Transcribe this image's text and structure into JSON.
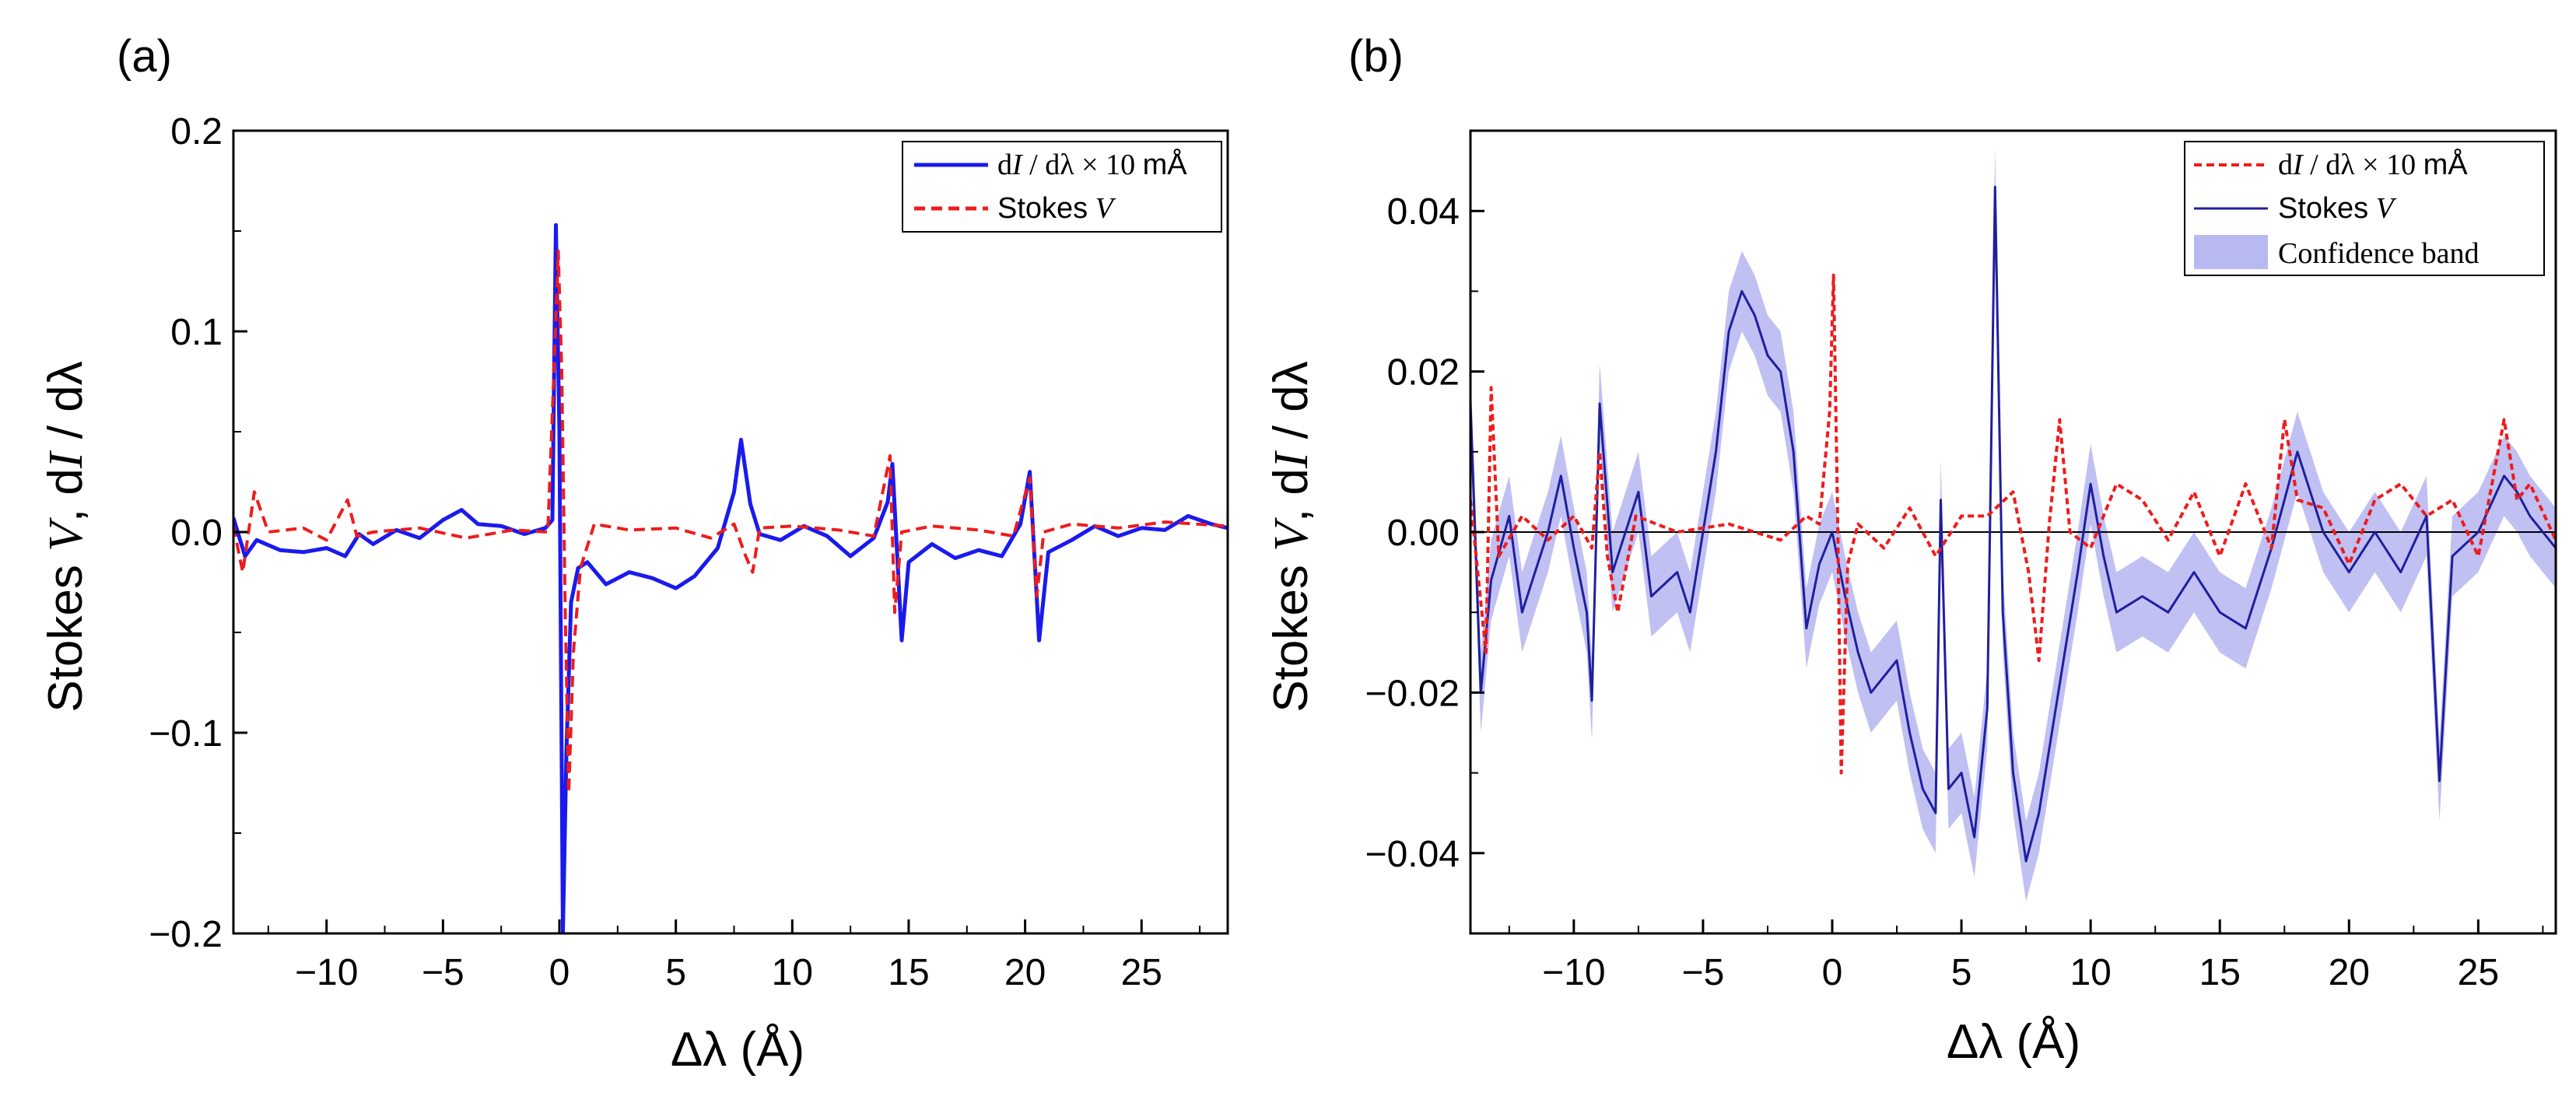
{
  "colors": {
    "blue": "#1a1aee",
    "navy": "#1f1f9e",
    "red": "#ee1c1c",
    "band": "#b9b9f2"
  },
  "chart_data": [
    {
      "panel_label": "(a)",
      "type": "line",
      "xlabel": "Δλ (Å)",
      "ylabel": "Stokes V, dI / dλ",
      "xlim": [
        -14,
        28.7
      ],
      "ylim": [
        -0.2,
        0.2
      ],
      "xticks": [
        -10,
        -5,
        0,
        5,
        10,
        15,
        20,
        25
      ],
      "xtick_labels": [
        "−10",
        "−5",
        "0",
        "5",
        "10",
        "15",
        "20",
        "25"
      ],
      "yticks": [
        -0.2,
        -0.1,
        0.0,
        0.1,
        0.2
      ],
      "ytick_labels": [
        "−0.2",
        "−0.1",
        "0.0",
        "0.1",
        "0.2"
      ],
      "legend": {
        "position": "top-right",
        "entries": [
          "dI / dλ × 10 mÅ",
          "Stokes V"
        ]
      },
      "series": [
        {
          "name": "dI / dλ × 10 mÅ",
          "style": "solid",
          "color": "#1a1aee",
          "points": [
            [
              -14,
              0.007
            ],
            [
              -13.5,
              -0.012
            ],
            [
              -13,
              -0.004
            ],
            [
              -12,
              -0.009
            ],
            [
              -11,
              -0.01
            ],
            [
              -10,
              -0.008
            ],
            [
              -9.2,
              -0.012
            ],
            [
              -8.6,
              -0.001
            ],
            [
              -8,
              -0.006
            ],
            [
              -7,
              0.001
            ],
            [
              -6,
              -0.003
            ],
            [
              -5,
              0.006
            ],
            [
              -4.2,
              0.011
            ],
            [
              -3.5,
              0.004
            ],
            [
              -2.5,
              0.003
            ],
            [
              -1.5,
              -0.001
            ],
            [
              -0.6,
              0.002
            ],
            [
              -0.3,
              0.006
            ],
            [
              -0.15,
              0.153
            ],
            [
              0,
              0.05
            ],
            [
              0.15,
              -0.2
            ],
            [
              0.3,
              -0.11
            ],
            [
              0.5,
              -0.035
            ],
            [
              0.8,
              -0.018
            ],
            [
              1.2,
              -0.015
            ],
            [
              2,
              -0.026
            ],
            [
              3,
              -0.02
            ],
            [
              4,
              -0.023
            ],
            [
              5,
              -0.028
            ],
            [
              5.8,
              -0.022
            ],
            [
              6.8,
              -0.008
            ],
            [
              7.5,
              0.02
            ],
            [
              7.8,
              0.046
            ],
            [
              8.2,
              0.014
            ],
            [
              8.6,
              -0.001
            ],
            [
              9.5,
              -0.004
            ],
            [
              10.5,
              0.003
            ],
            [
              11.5,
              -0.002
            ],
            [
              12.5,
              -0.012
            ],
            [
              13.5,
              -0.003
            ],
            [
              14.1,
              0.015
            ],
            [
              14.3,
              0.034
            ],
            [
              14.5,
              -0.01
            ],
            [
              14.7,
              -0.054
            ],
            [
              15,
              -0.015
            ],
            [
              16,
              -0.006
            ],
            [
              17,
              -0.013
            ],
            [
              18,
              -0.009
            ],
            [
              19,
              -0.012
            ],
            [
              19.8,
              0.004
            ],
            [
              20.2,
              0.03
            ],
            [
              20.4,
              -0.012
            ],
            [
              20.6,
              -0.054
            ],
            [
              21,
              -0.01
            ],
            [
              22,
              -0.004
            ],
            [
              23,
              0.003
            ],
            [
              24,
              -0.002
            ],
            [
              25,
              0.002
            ],
            [
              26,
              0.001
            ],
            [
              27,
              0.008
            ],
            [
              28,
              0.004
            ],
            [
              28.7,
              0.002
            ]
          ]
        },
        {
          "name": "Stokes V",
          "style": "dashed",
          "color": "#ee1c1c",
          "points": [
            [
              -14,
              0.003
            ],
            [
              -13.6,
              -0.02
            ],
            [
              -13.1,
              0.02
            ],
            [
              -12.5,
              0.0
            ],
            [
              -11,
              0.002
            ],
            [
              -10,
              -0.004
            ],
            [
              -9.1,
              0.016
            ],
            [
              -8.7,
              -0.002
            ],
            [
              -8,
              0.0
            ],
            [
              -6,
              0.002
            ],
            [
              -4,
              -0.003
            ],
            [
              -2,
              0.001
            ],
            [
              -0.5,
              0.0
            ],
            [
              -0.2,
              0.09
            ],
            [
              -0.05,
              0.14
            ],
            [
              0.1,
              0.08
            ],
            [
              0.25,
              -0.04
            ],
            [
              0.4,
              -0.13
            ],
            [
              0.6,
              -0.06
            ],
            [
              0.9,
              -0.018
            ],
            [
              1.5,
              0.004
            ],
            [
              3,
              0.001
            ],
            [
              5,
              0.002
            ],
            [
              6.5,
              -0.003
            ],
            [
              7.5,
              0.004
            ],
            [
              8,
              -0.012
            ],
            [
              8.3,
              -0.02
            ],
            [
              8.6,
              0.002
            ],
            [
              10,
              0.003
            ],
            [
              12,
              0.001
            ],
            [
              13.5,
              -0.002
            ],
            [
              14.2,
              0.038
            ],
            [
              14.4,
              -0.04
            ],
            [
              14.7,
              0.0
            ],
            [
              16,
              0.003
            ],
            [
              18,
              0.001
            ],
            [
              19.5,
              -0.002
            ],
            [
              20.2,
              0.027
            ],
            [
              20.5,
              -0.032
            ],
            [
              20.8,
              0.0
            ],
            [
              22,
              0.004
            ],
            [
              24,
              0.002
            ],
            [
              26,
              0.005
            ],
            [
              28.7,
              0.003
            ]
          ]
        }
      ]
    },
    {
      "panel_label": "(b)",
      "type": "line",
      "xlabel": "Δλ (Å)",
      "ylabel": "Stokes V, dI / dλ",
      "xlim": [
        -14,
        28
      ],
      "ylim": [
        -0.05,
        0.05
      ],
      "xticks": [
        -10,
        -5,
        0,
        5,
        10,
        15,
        20,
        25
      ],
      "xtick_labels": [
        "−10",
        "−5",
        "0",
        "5",
        "10",
        "15",
        "20",
        "25"
      ],
      "yticks": [
        -0.04,
        -0.02,
        0.0,
        0.02,
        0.04
      ],
      "ytick_labels": [
        "−0.04",
        "−0.02",
        "0.00",
        "0.02",
        "0.04"
      ],
      "zero_line": true,
      "legend": {
        "position": "top-right",
        "entries": [
          "dI / dλ × 10 mÅ",
          "Stokes V",
          "Confidence band"
        ]
      },
      "series": [
        {
          "name": "dI / dλ × 10 mÅ",
          "style": "dashed",
          "color": "#ee1c1c",
          "points": [
            [
              -14,
              0.004
            ],
            [
              -13.4,
              -0.015
            ],
            [
              -13.2,
              0.018
            ],
            [
              -12.9,
              -0.003
            ],
            [
              -12,
              0.002
            ],
            [
              -11,
              -0.001
            ],
            [
              -10,
              0.002
            ],
            [
              -9.3,
              -0.002
            ],
            [
              -9,
              0.01
            ],
            [
              -8.7,
              -0.003
            ],
            [
              -8.3,
              -0.01
            ],
            [
              -7.6,
              0.002
            ],
            [
              -6,
              0.0
            ],
            [
              -4,
              0.001
            ],
            [
              -2,
              -0.001
            ],
            [
              -1,
              0.002
            ],
            [
              -0.5,
              0.001
            ],
            [
              -0.1,
              0.015
            ],
            [
              0.05,
              0.032
            ],
            [
              0.2,
              0.004
            ],
            [
              0.35,
              -0.03
            ],
            [
              0.6,
              -0.004
            ],
            [
              1,
              0.001
            ],
            [
              2,
              -0.002
            ],
            [
              3,
              0.003
            ],
            [
              4,
              -0.003
            ],
            [
              5,
              0.002
            ],
            [
              6,
              0.002
            ],
            [
              7,
              0.005
            ],
            [
              7.6,
              -0.005
            ],
            [
              8,
              -0.016
            ],
            [
              8.4,
              0.001
            ],
            [
              8.8,
              0.014
            ],
            [
              9.2,
              0.0
            ],
            [
              10,
              -0.002
            ],
            [
              11,
              0.006
            ],
            [
              12,
              0.004
            ],
            [
              13,
              -0.001
            ],
            [
              14,
              0.005
            ],
            [
              15,
              -0.003
            ],
            [
              16,
              0.006
            ],
            [
              17,
              -0.002
            ],
            [
              17.5,
              0.014
            ],
            [
              18,
              0.004
            ],
            [
              19,
              0.003
            ],
            [
              20,
              -0.004
            ],
            [
              21,
              0.004
            ],
            [
              22,
              0.006
            ],
            [
              23,
              0.002
            ],
            [
              24,
              0.004
            ],
            [
              25,
              -0.003
            ],
            [
              26,
              0.014
            ],
            [
              26.5,
              0.004
            ],
            [
              27,
              0.006
            ],
            [
              28,
              -0.001
            ]
          ]
        },
        {
          "name": "Stokes V",
          "style": "solid",
          "color": "#1f1f9e",
          "points": [
            [
              -14,
              0.016
            ],
            [
              -13.6,
              -0.02
            ],
            [
              -13.2,
              -0.006
            ],
            [
              -12.5,
              0.002
            ],
            [
              -12,
              -0.01
            ],
            [
              -11,
              0.0
            ],
            [
              -10.5,
              0.007
            ],
            [
              -10,
              -0.002
            ],
            [
              -9.5,
              -0.01
            ],
            [
              -9.3,
              -0.021
            ],
            [
              -9,
              0.016
            ],
            [
              -8.5,
              -0.005
            ],
            [
              -7.5,
              0.005
            ],
            [
              -7,
              -0.008
            ],
            [
              -6,
              -0.005
            ],
            [
              -5.5,
              -0.01
            ],
            [
              -5,
              0.0
            ],
            [
              -4.5,
              0.01
            ],
            [
              -4,
              0.025
            ],
            [
              -3.5,
              0.03
            ],
            [
              -3,
              0.027
            ],
            [
              -2.5,
              0.022
            ],
            [
              -2,
              0.02
            ],
            [
              -1.5,
              0.01
            ],
            [
              -1,
              -0.012
            ],
            [
              -0.5,
              -0.004
            ],
            [
              0,
              0.0
            ],
            [
              0.5,
              -0.008
            ],
            [
              1,
              -0.015
            ],
            [
              1.5,
              -0.02
            ],
            [
              2,
              -0.018
            ],
            [
              2.5,
              -0.016
            ],
            [
              3,
              -0.025
            ],
            [
              3.5,
              -0.032
            ],
            [
              4,
              -0.035
            ],
            [
              4.2,
              0.004
            ],
            [
              4.5,
              -0.032
            ],
            [
              5,
              -0.03
            ],
            [
              5.5,
              -0.038
            ],
            [
              6,
              -0.022
            ],
            [
              6.3,
              0.043
            ],
            [
              6.6,
              -0.01
            ],
            [
              7,
              -0.03
            ],
            [
              7.5,
              -0.041
            ],
            [
              8,
              -0.035
            ],
            [
              8.5,
              -0.025
            ],
            [
              9,
              -0.015
            ],
            [
              9.5,
              -0.005
            ],
            [
              10,
              0.006
            ],
            [
              10.5,
              -0.003
            ],
            [
              11,
              -0.01
            ],
            [
              12,
              -0.008
            ],
            [
              13,
              -0.01
            ],
            [
              14,
              -0.005
            ],
            [
              15,
              -0.01
            ],
            [
              16,
              -0.012
            ],
            [
              17,
              -0.002
            ],
            [
              18,
              0.01
            ],
            [
              19,
              0.0
            ],
            [
              20,
              -0.005
            ],
            [
              21,
              0.0
            ],
            [
              22,
              -0.005
            ],
            [
              23,
              0.002
            ],
            [
              23.5,
              -0.031
            ],
            [
              24,
              -0.003
            ],
            [
              25,
              0.0
            ],
            [
              26,
              0.007
            ],
            [
              26.5,
              0.005
            ],
            [
              27,
              0.002
            ],
            [
              28,
              -0.002
            ]
          ]
        }
      ],
      "confidence_band_halfwidth": 0.005
    }
  ]
}
